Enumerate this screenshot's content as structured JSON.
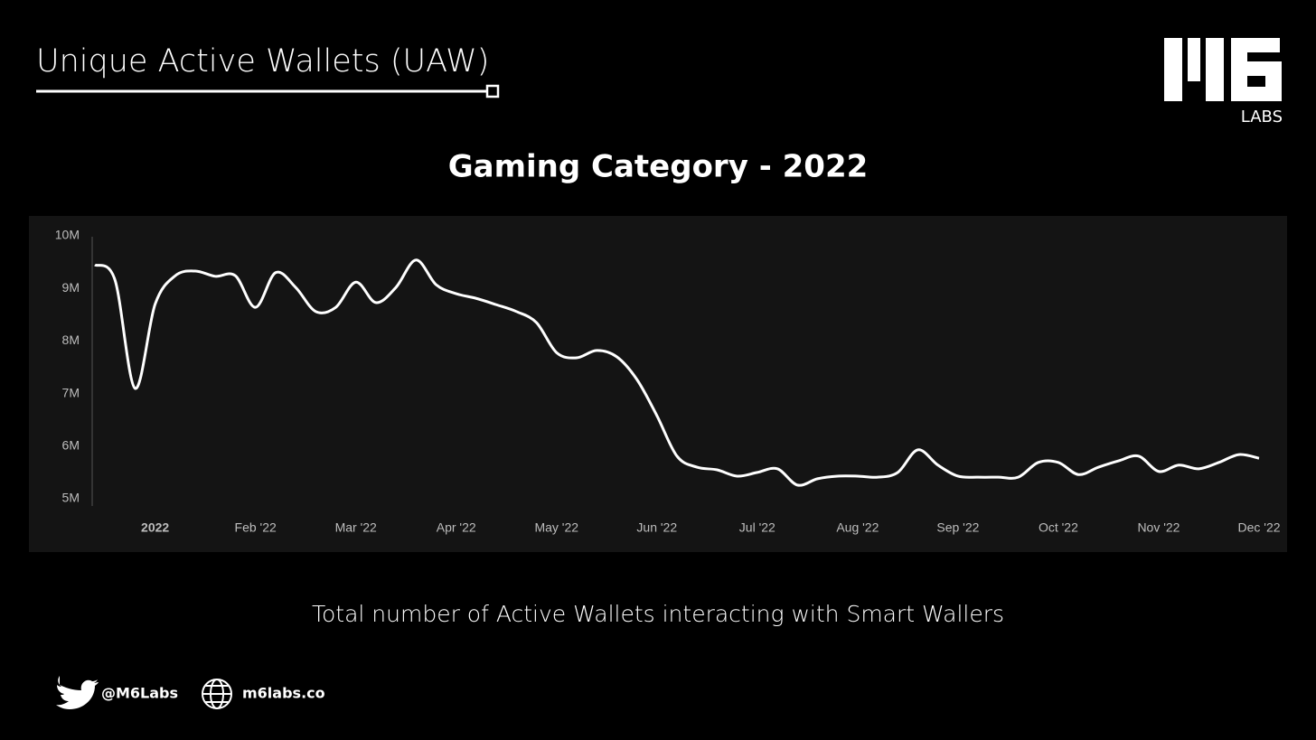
{
  "header": {
    "title": "Unique Active Wallets (UAW)",
    "logo_text": "LABS"
  },
  "chart_data": {
    "type": "line",
    "title": "Gaming Category - 2022",
    "categories": [
      null,
      null,
      null,
      "2022",
      null,
      null,
      null,
      null,
      "Feb '22",
      null,
      null,
      null,
      null,
      "Mar '22",
      null,
      null,
      null,
      null,
      "Apr '22",
      null,
      null,
      null,
      null,
      "May '22",
      null,
      null,
      null,
      null,
      "Jun '22",
      null,
      null,
      null,
      null,
      "Jul '22",
      null,
      null,
      null,
      null,
      "Aug '22",
      null,
      null,
      null,
      null,
      "Sep '22",
      null,
      null,
      null,
      null,
      "Oct '22",
      null,
      null,
      null,
      null,
      "Nov '22",
      null,
      null,
      null,
      null,
      "Dec '22"
    ],
    "series": [
      {
        "name": "Unique Active Wallets",
        "color": "#ffffff",
        "values": [
          9450000,
          9160000,
          7100000,
          8700000,
          9240000,
          9330000,
          9230000,
          9240000,
          8640000,
          9300000,
          9020000,
          8560000,
          8640000,
          9120000,
          8730000,
          9020000,
          9540000,
          9070000,
          8900000,
          8810000,
          8690000,
          8560000,
          8350000,
          7780000,
          7680000,
          7820000,
          7700000,
          7270000,
          6580000,
          5810000,
          5600000,
          5550000,
          5430000,
          5500000,
          5570000,
          5260000,
          5380000,
          5430000,
          5430000,
          5410000,
          5500000,
          5930000,
          5640000,
          5430000,
          5410000,
          5410000,
          5410000,
          5690000,
          5690000,
          5460000,
          5600000,
          5720000,
          5810000,
          5520000,
          5640000,
          5570000,
          5690000,
          5840000,
          5770000
        ]
      }
    ],
    "ylim": [
      5000000,
      10000000
    ],
    "yticks": [
      {
        "value": 5000000,
        "label": "5M"
      },
      {
        "value": 6000000,
        "label": "6M"
      },
      {
        "value": 7000000,
        "label": "7M"
      },
      {
        "value": 8000000,
        "label": "8M"
      },
      {
        "value": 9000000,
        "label": "9M"
      },
      {
        "value": 10000000,
        "label": "10M"
      }
    ],
    "grid": false
  },
  "caption": "Total number of Active Wallets interacting with Smart Wallers",
  "footer": {
    "twitter": "@M6Labs",
    "website": "m6labs.co"
  }
}
